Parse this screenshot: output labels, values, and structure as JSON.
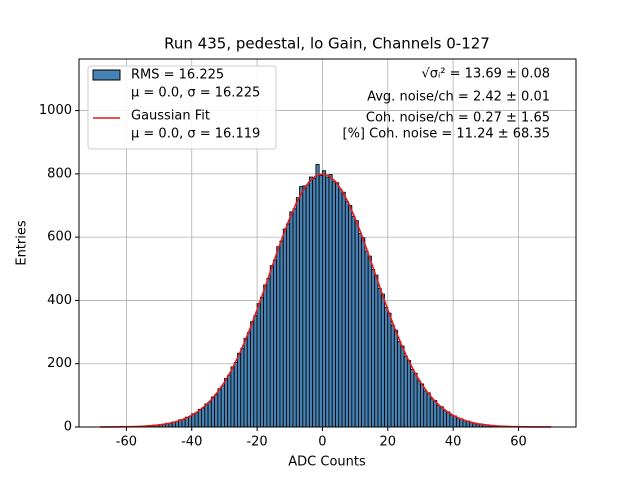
{
  "chart_data": {
    "type": "histogram",
    "title": "Run 435, pedestal, lo Gain, Channels 0-127",
    "xlabel": "ADC Counts",
    "ylabel": "Entries",
    "xlim": [
      -74.5,
      77.6
    ],
    "ylim": [
      0,
      1163
    ],
    "xticks": [
      -60,
      -40,
      -20,
      0,
      20,
      40,
      60
    ],
    "yticks": [
      0,
      200,
      400,
      600,
      800,
      1000
    ],
    "grid": true,
    "legend": "upper left",
    "annotations": [
      "√σᵢ² = 13.69 ± 0.08",
      "Avg. noise/ch = 2.42 ± 0.01",
      "Coh. noise/ch = 0.27 ± 1.65",
      "[%] Coh. noise = 11.24 ± 68.35"
    ],
    "series": [
      {
        "type": "histogram",
        "name": [
          "RMS = 16.225",
          "μ = 0.0, σ = 16.225"
        ],
        "color": "#4682b4",
        "edgecolor": "#000000",
        "bins": [
          -56,
          -55,
          -54,
          -53,
          -52,
          -51,
          -50,
          -49,
          -48,
          -47,
          -46,
          -45,
          -44,
          -43,
          -42,
          -41,
          -40,
          -39,
          -38,
          -37,
          -36,
          -35,
          -34,
          -33,
          -32,
          -31,
          -30,
          -29,
          -28,
          -27,
          -26,
          -25,
          -24,
          -23,
          -22,
          -21,
          -20,
          -19,
          -18,
          -17,
          -16,
          -15,
          -14,
          -13,
          -12,
          -11,
          -10,
          -9,
          -8,
          -7,
          -6,
          -5,
          -4,
          -3,
          -2,
          -1,
          0,
          1,
          2,
          3,
          4,
          5,
          6,
          7,
          8,
          9,
          10,
          11,
          12,
          13,
          14,
          15,
          16,
          17,
          18,
          19,
          20,
          21,
          22,
          23,
          24,
          25,
          26,
          27,
          28,
          29,
          30,
          31,
          32,
          33,
          34,
          35,
          36,
          37,
          38,
          39,
          40,
          41,
          42,
          43,
          44,
          45,
          46,
          47,
          48,
          49,
          50,
          51,
          52,
          53,
          54,
          55,
          56
        ],
        "values": [
          1,
          2,
          4,
          3,
          6,
          5,
          8,
          9,
          12,
          11,
          16,
          17,
          23,
          24,
          31,
          33,
          42,
          45,
          56,
          60,
          73,
          79,
          95,
          102,
          121,
          130,
          153,
          164,
          190,
          204,
          233,
          248,
          280,
          298,
          333,
          352,
          390,
          410,
          449,
          470,
          510,
          528,
          570,
          588,
          626,
          642,
          680,
          690,
          725,
          760,
          762,
          765,
          790,
          785,
          830,
          795,
          810,
          790,
          798,
          775,
          772,
          750,
          742,
          712,
          700,
          665,
          652,
          612,
          598,
          556,
          540,
          498,
          480,
          438,
          420,
          378,
          360,
          322,
          306,
          270,
          256,
          224,
          210,
          182,
          170,
          146,
          136,
          114,
          108,
          89,
          84,
          68,
          64,
          52,
          48,
          38,
          35,
          28,
          26,
          20,
          19,
          14,
          13,
          9,
          10,
          6,
          7,
          4,
          5,
          3,
          3,
          2
        ]
      },
      {
        "type": "line",
        "name": [
          "Gaussian Fit",
          "μ = 0.0, σ = 16.119"
        ],
        "color": "#e41a1c",
        "x": [
          -68,
          -66,
          -64,
          -62,
          -60,
          -58,
          -56,
          -54,
          -52,
          -50,
          -48,
          -46,
          -44,
          -42,
          -40,
          -38,
          -36,
          -34,
          -32,
          -30,
          -28,
          -26,
          -24,
          -22,
          -20,
          -18,
          -16,
          -14,
          -12,
          -10,
          -8,
          -6,
          -4,
          -2,
          0,
          2,
          4,
          6,
          8,
          10,
          12,
          14,
          16,
          18,
          20,
          22,
          24,
          26,
          28,
          30,
          32,
          34,
          36,
          38,
          40,
          42,
          44,
          46,
          48,
          50,
          52,
          54,
          56,
          58,
          60,
          62,
          64,
          66,
          68,
          70
        ],
        "values": [
          0.1,
          0.2,
          0.3,
          0.5,
          0.8,
          1.2,
          1.9,
          2.9,
          4.4,
          6.5,
          9.5,
          13.7,
          19.2,
          27.0,
          36.8,
          49.7,
          66.1,
          86.5,
          111.5,
          141.5,
          176.9,
          217.8,
          264.0,
          315.0,
          370.6,
          428.8,
          488.8,
          548.6,
          606.2,
          660.0,
          707.2,
          746.4,
          775.7,
          793.9,
          800.0,
          793.9,
          775.7,
          746.4,
          707.2,
          660.0,
          606.2,
          548.6,
          488.8,
          428.8,
          370.6,
          315.0,
          264.0,
          217.8,
          176.9,
          141.5,
          111.5,
          86.5,
          66.1,
          49.7,
          36.8,
          27.0,
          19.2,
          13.7,
          9.5,
          6.5,
          4.4,
          2.9,
          1.9,
          1.2,
          0.8,
          0.5,
          0.3,
          0.2,
          0.1,
          0.1
        ]
      }
    ]
  }
}
